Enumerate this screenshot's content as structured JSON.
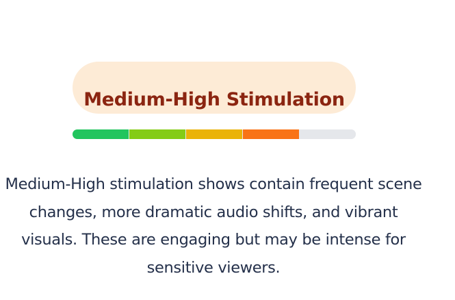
{
  "badge": {
    "label": "Medium-High Stimulation",
    "text_color": "#8b2511",
    "background_color": "#fdebd6"
  },
  "meter": {
    "level": 4,
    "max": 5,
    "segment_colors": [
      "#22c55e",
      "#84cc16",
      "#eab308",
      "#f97316",
      "#e5e7eb"
    ]
  },
  "description": {
    "text": "Medium-High stimulation shows contain frequent scene changes, more dramatic audio shifts, and vibrant visuals. These are engaging but may be intense for sensitive viewers."
  }
}
